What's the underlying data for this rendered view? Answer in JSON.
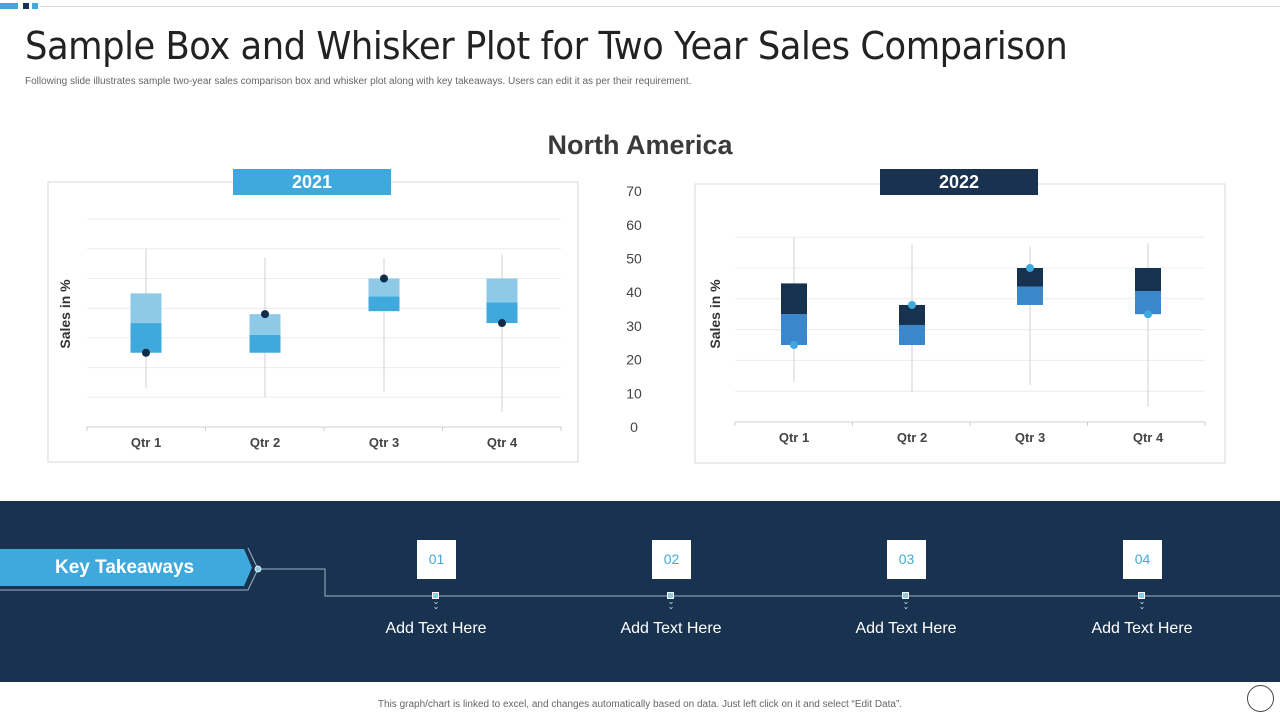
{
  "header": {
    "title": "Sample Box and Whisker Plot for Two Year Sales Comparison",
    "subtitle": "Following slide illustrates sample two-year sales comparison box and whisker plot along with key takeaways. Users can edit it as per their requirement.",
    "region": "North America"
  },
  "colors": {
    "accent": "#3fa9dd",
    "navy": "#18324f",
    "light_blue": "#8ecae8",
    "mid_blue": "#3b87cc"
  },
  "chart_data": [
    {
      "type": "box",
      "title": "2021",
      "ylabel": "Sales in %",
      "ylim": [
        0,
        70
      ],
      "grid": true,
      "categories": [
        "Qtr 1",
        "Qtr 2",
        "Qtr 3",
        "Qtr 4"
      ],
      "boxes": [
        {
          "min": 13,
          "q1": 25,
          "median": 35,
          "q3": 45,
          "max": 60,
          "marker": 25
        },
        {
          "min": 10,
          "q1": 25,
          "median": 31,
          "q3": 38,
          "max": 57,
          "marker": 38
        },
        {
          "min": 12,
          "q1": 39,
          "median": 44,
          "q3": 50,
          "max": 57,
          "marker": 50
        },
        {
          "min": 5,
          "q1": 35,
          "median": 42,
          "q3": 50,
          "max": 58,
          "marker": 35
        }
      ],
      "colors": {
        "title_bg": "#3fa9dd",
        "lower": "#3fa9dd",
        "upper": "#8ecae8",
        "marker": "#0f2d4a"
      }
    },
    {
      "type": "box",
      "title": "2022",
      "ylabel": "Sales in %",
      "ylim": [
        0,
        70
      ],
      "grid": true,
      "y_ticks": [
        "0",
        "10",
        "20",
        "30",
        "40",
        "50",
        "60",
        "70"
      ],
      "categories": [
        "Qtr 1",
        "Qtr 2",
        "Qtr 3",
        "Qtr 4"
      ],
      "boxes": [
        {
          "min": 13,
          "q1": 25,
          "median": 35,
          "q3": 45,
          "max": 60,
          "marker": 25
        },
        {
          "min": 10,
          "q1": 25,
          "median": 31.5,
          "q3": 38,
          "max": 57.5,
          "marker": 38
        },
        {
          "min": 12,
          "q1": 38,
          "median": 44,
          "q3": 50,
          "max": 57,
          "marker": 50
        },
        {
          "min": 5,
          "q1": 35,
          "median": 42.5,
          "q3": 50,
          "max": 58,
          "marker": 35
        }
      ],
      "colors": {
        "title_bg": "#18324f",
        "lower": "#3b87cc",
        "upper": "#17324f",
        "marker": "#3fa9dd"
      }
    }
  ],
  "takeaways": {
    "label": "Key Takeaways",
    "items": [
      {
        "number": "01",
        "text": "Add Text Here"
      },
      {
        "number": "02",
        "text": "Add Text Here"
      },
      {
        "number": "03",
        "text": "Add Text Here"
      },
      {
        "number": "04",
        "text": "Add Text Here"
      }
    ]
  },
  "footer": "This graph/chart is linked to excel, and changes automatically based on data. Just left click on it and select “Edit Data”."
}
